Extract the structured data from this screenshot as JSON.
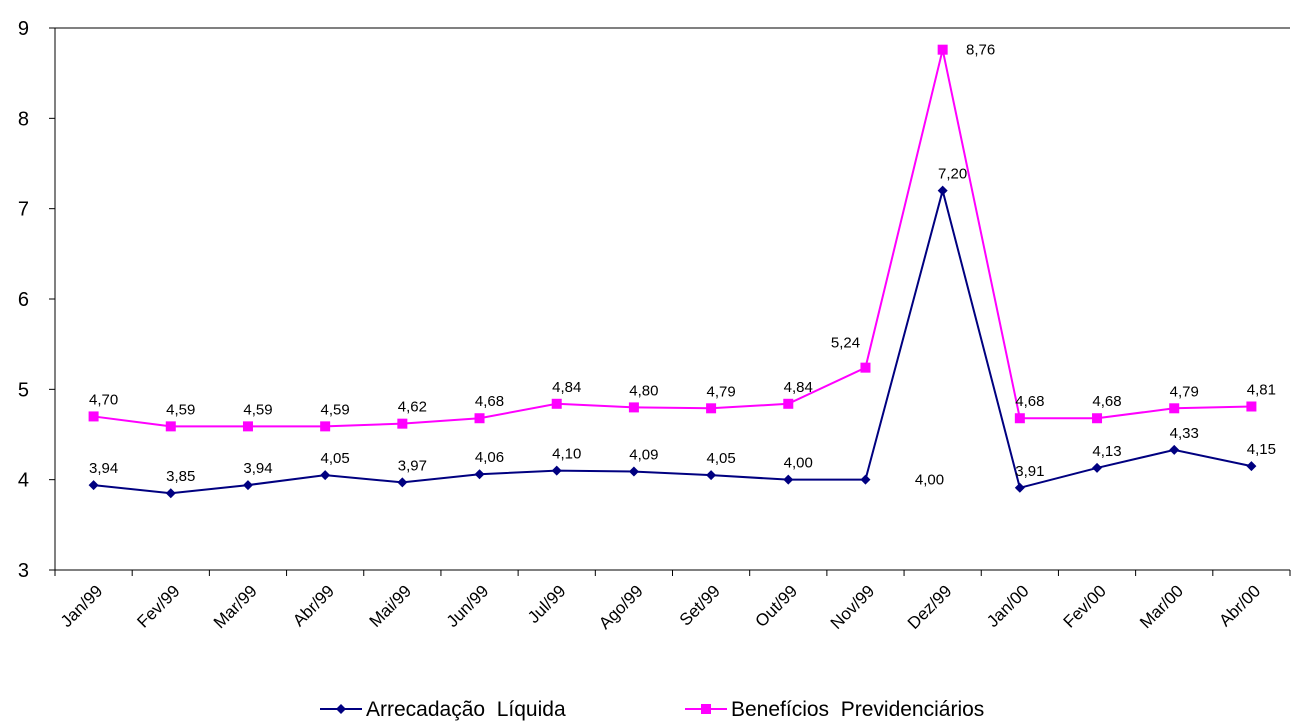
{
  "chart_data": {
    "type": "line",
    "categories": [
      "Jan/99",
      "Fev/99",
      "Mar/99",
      "Abr/99",
      "Mai/99",
      "Jun/99",
      "Jul/99",
      "Ago/99",
      "Set/99",
      "Out/99",
      "Nov/99",
      "Dez/99",
      "Jan/00",
      "Fev/00",
      "Mar/00",
      "Abr/00"
    ],
    "series": [
      {
        "name": "Arrecadação  Líquida",
        "color": "#000080",
        "marker": "diamond",
        "values": [
          3.94,
          3.85,
          3.94,
          4.05,
          3.97,
          4.06,
          4.1,
          4.09,
          4.05,
          4.0,
          4.0,
          7.2,
          3.91,
          4.13,
          4.33,
          4.15
        ],
        "value_labels": [
          "3,94",
          "3,85",
          "3,94",
          "4,05",
          "3,97",
          "4,06",
          "4,10",
          "4,09",
          "4,05",
          "4,00",
          "4,00",
          "7,20",
          "3,91",
          "4,13",
          "4,33",
          "4,15"
        ]
      },
      {
        "name": "Benefícios  Previdenciários",
        "color": "#ff00ff",
        "marker": "square",
        "values": [
          4.7,
          4.59,
          4.59,
          4.59,
          4.62,
          4.68,
          4.84,
          4.8,
          4.79,
          4.84,
          5.24,
          8.76,
          4.68,
          4.68,
          4.79,
          4.81
        ],
        "value_labels": [
          "4,70",
          "4,59",
          "4,59",
          "4,59",
          "4,62",
          "4,68",
          "4,84",
          "4,80",
          "4,79",
          "4,84",
          "5,24",
          "8,76",
          "4,68",
          "4,68",
          "4,79",
          "4,81"
        ]
      }
    ],
    "ylim": [
      3,
      9
    ],
    "yticks": [
      3,
      4,
      5,
      6,
      7,
      8,
      9
    ],
    "grid": false,
    "legend": "bottom"
  }
}
